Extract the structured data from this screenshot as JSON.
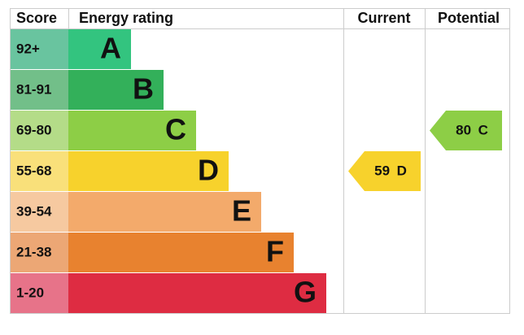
{
  "header": {
    "score": "Score",
    "rating": "Energy rating",
    "current": "Current",
    "potential": "Potential"
  },
  "bands": [
    {
      "score": "92+",
      "letter": "A",
      "color": "#33c47f",
      "score_color": "#69c49f"
    },
    {
      "score": "81-91",
      "letter": "B",
      "color": "#33b05a",
      "score_color": "#72bf89"
    },
    {
      "score": "69-80",
      "letter": "C",
      "color": "#8dce46",
      "score_color": "#b4dc88"
    },
    {
      "score": "55-68",
      "letter": "D",
      "color": "#f7d22c",
      "score_color": "#f9e07a"
    },
    {
      "score": "39-54",
      "letter": "E",
      "color": "#f3aa6b",
      "score_color": "#f6c9a0"
    },
    {
      "score": "21-38",
      "letter": "F",
      "color": "#e8822f",
      "score_color": "#eca775"
    },
    {
      "score": "1-20",
      "letter": "G",
      "color": "#de2c42",
      "score_color": "#e77389"
    }
  ],
  "current": {
    "value": "59",
    "letter": "D"
  },
  "potential": {
    "value": "80",
    "letter": "C"
  }
}
